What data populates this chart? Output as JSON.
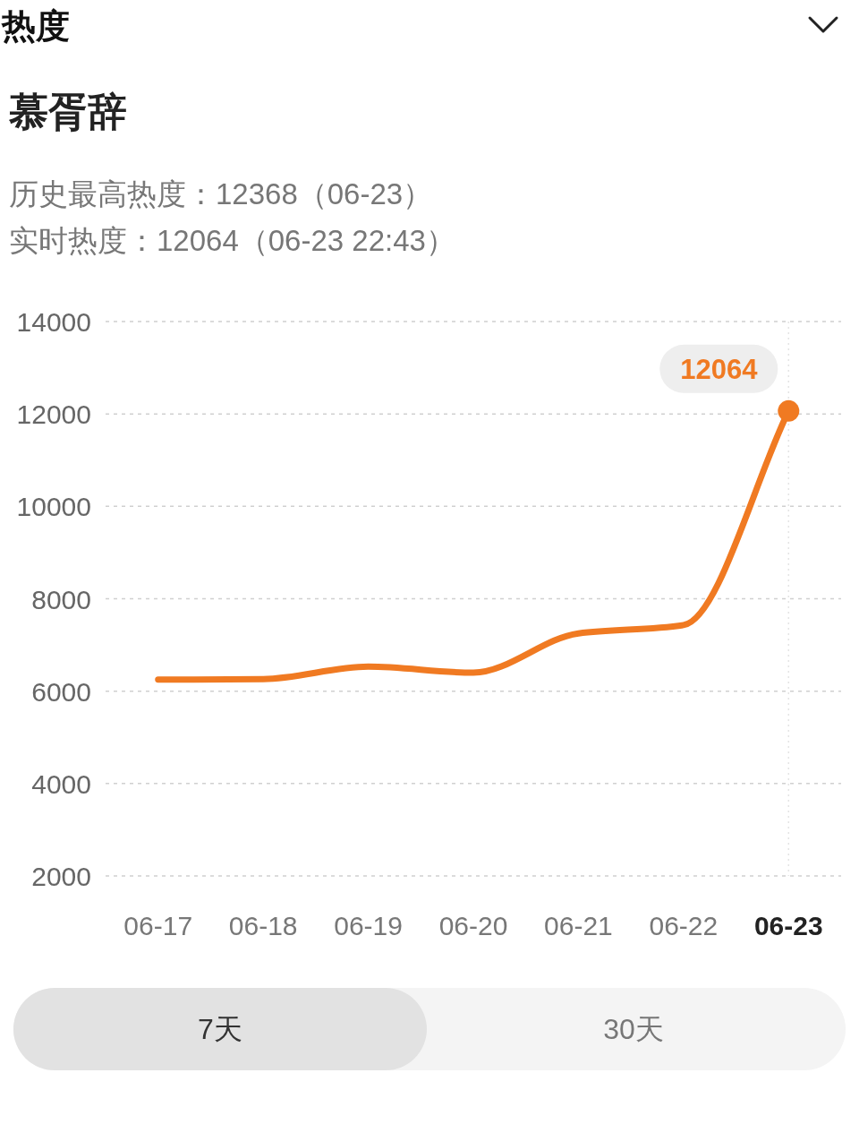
{
  "chart_data": {
    "type": "line",
    "title": "热度",
    "subtitle": "慕胥辞",
    "annotations": [
      "历史最高热度：12368（06-23）",
      "实时热度：12064（06-23 22:43）",
      "7天",
      "30天"
    ],
    "categories": [
      "06-17",
      "06-18",
      "06-19",
      "06-20",
      "06-21",
      "06-22",
      "06-23"
    ],
    "series": [
      {
        "color": "#f07a22",
        "values": [
          6250,
          6260,
          6530,
          6400,
          7250,
          7430,
          12064
        ],
        "value_labels": [
          null,
          null,
          null,
          null,
          null,
          null,
          "12064"
        ]
      }
    ],
    "ylim": [
      2000,
      14000
    ],
    "yticks": [
      2000,
      4000,
      6000,
      8000,
      10000,
      12000,
      14000
    ],
    "grid": "y",
    "line_style": "solid",
    "marker": "none",
    "ref_lines": [
      {
        "axis": "x",
        "value": "06-23",
        "line_style": "dotted",
        "color": "#e4e4e4"
      }
    ]
  }
}
